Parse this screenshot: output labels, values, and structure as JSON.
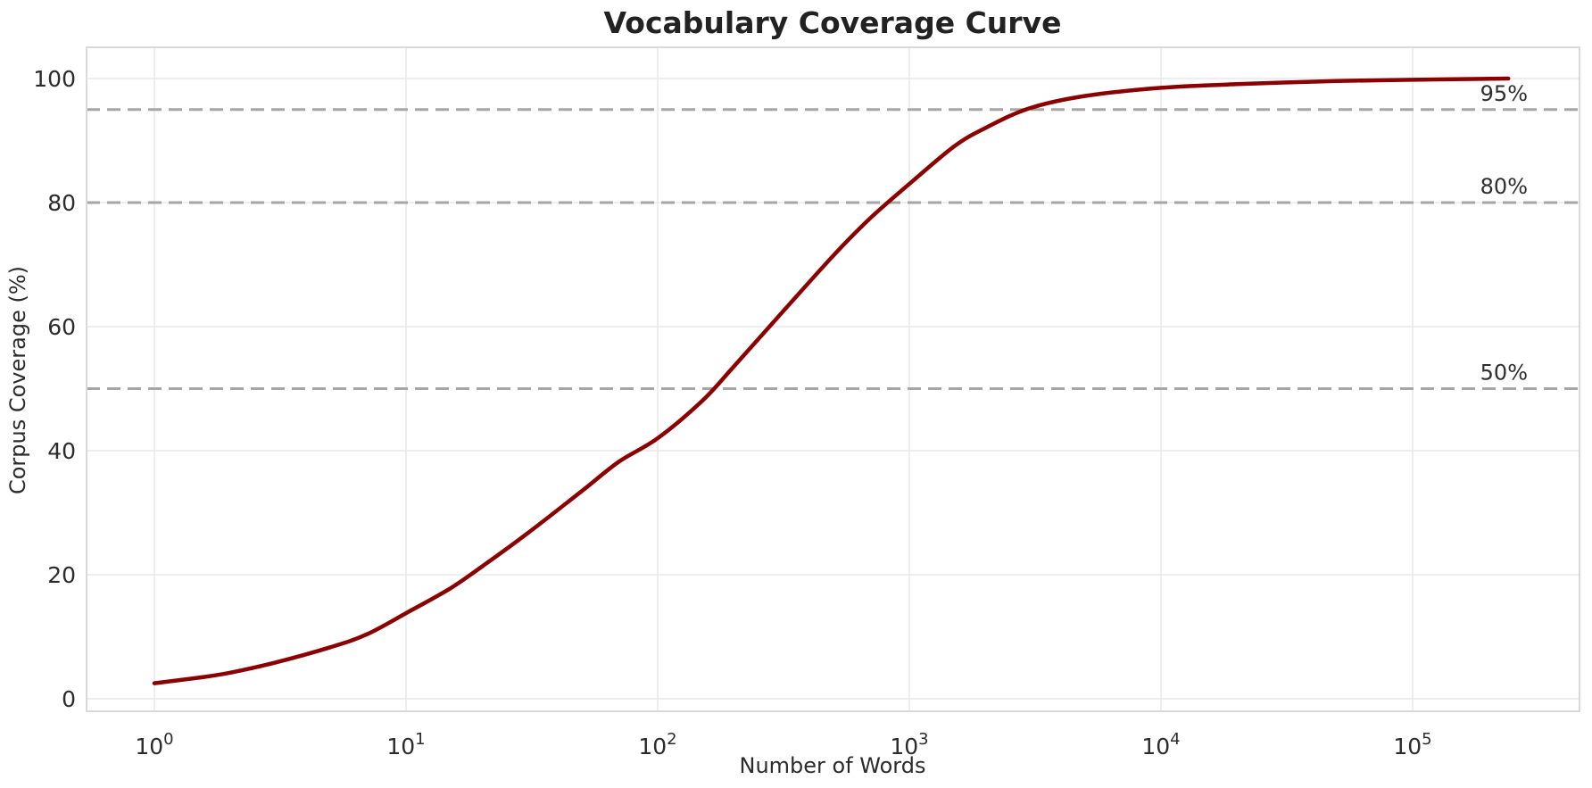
{
  "title": "Vocabulary Coverage Curve",
  "axes": {
    "xlabel": "Number of Words",
    "ylabel": "Corpus Coverage (%)",
    "x_tick_base": "10",
    "x_tick_exponents": [
      0,
      1,
      2,
      3,
      4,
      5
    ],
    "y_ticks": [
      0,
      20,
      40,
      60,
      80,
      100
    ]
  },
  "thresholds": [
    {
      "label": "95%",
      "value": 95
    },
    {
      "label": "80%",
      "value": 80
    },
    {
      "label": "50%",
      "value": 50
    }
  ],
  "colors": {
    "background": "#ffffff",
    "curve": "#8b0000",
    "threshold_line": "#a6a6a6",
    "gridline": "#e9e9e9",
    "spine": "#d9d9d9",
    "text": "#2b2b2b"
  },
  "chart_data": {
    "type": "line",
    "title": "Vocabulary Coverage Curve",
    "xlabel": "Number of Words",
    "ylabel": "Corpus Coverage (%)",
    "x_scale": "log",
    "xlim": [
      0.54,
      460000
    ],
    "ylim": [
      -2.3,
      105
    ],
    "grid": true,
    "legend": false,
    "hlines": [
      50,
      80,
      95
    ],
    "series": [
      {
        "name": "coverage",
        "points": [
          [
            1,
            2.5
          ],
          [
            1.5,
            3.4
          ],
          [
            2,
            4.2
          ],
          [
            3,
            5.8
          ],
          [
            5,
            8.3
          ],
          [
            7,
            10.4
          ],
          [
            10,
            13.8
          ],
          [
            15,
            17.8
          ],
          [
            20,
            21.3
          ],
          [
            30,
            26.5
          ],
          [
            50,
            33.5
          ],
          [
            70,
            38.2
          ],
          [
            100,
            42
          ],
          [
            150,
            48
          ],
          [
            200,
            53.5
          ],
          [
            300,
            61.5
          ],
          [
            500,
            71.5
          ],
          [
            700,
            77.5
          ],
          [
            1000,
            83
          ],
          [
            1500,
            89
          ],
          [
            2000,
            92
          ],
          [
            3000,
            95.2
          ],
          [
            5000,
            97.2
          ],
          [
            10000,
            98.5
          ],
          [
            20000,
            99.1
          ],
          [
            50000,
            99.6
          ],
          [
            100000,
            99.8
          ],
          [
            240000,
            100
          ]
        ]
      }
    ]
  }
}
